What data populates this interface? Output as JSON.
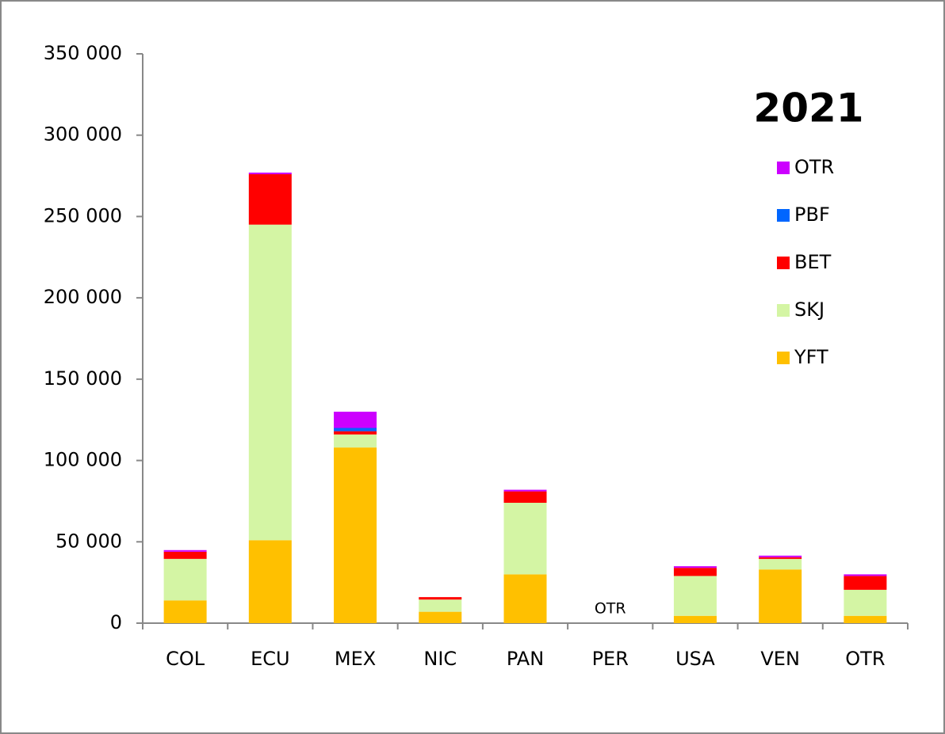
{
  "chart_data": {
    "type": "stacked_bar",
    "legend_title": "2021",
    "categories": [
      "COL",
      "ECU",
      "MEX",
      "NIC",
      "PAN",
      "PER",
      "USA",
      "VEN",
      "OTR"
    ],
    "series": [
      {
        "name": "YFT",
        "color": "#ffc000",
        "values": [
          14000,
          51000,
          108000,
          7000,
          30000,
          0,
          4500,
          33000,
          4500
        ]
      },
      {
        "name": "SKJ",
        "color": "#d4f5a4",
        "values": [
          25500,
          194000,
          8000,
          7500,
          44000,
          0,
          24500,
          6500,
          16000
        ]
      },
      {
        "name": "BET",
        "color": "#ff0000",
        "values": [
          4400,
          31000,
          2000,
          1500,
          7000,
          0,
          5000,
          1000,
          8500
        ]
      },
      {
        "name": "PBF",
        "color": "#0066ff",
        "values": [
          0,
          0,
          2000,
          0,
          0,
          0,
          0,
          0,
          0
        ]
      },
      {
        "name": "OTR",
        "color": "#cc00ff",
        "values": [
          1000,
          1000,
          10000,
          0,
          1000,
          0,
          1000,
          1000,
          1000
        ]
      }
    ],
    "annotations": [
      {
        "text": "OTR",
        "category": "PER"
      }
    ],
    "ylim": [
      0,
      350000
    ],
    "yticks": [
      0,
      {
        "value": 50000,
        "label": "50 000"
      },
      {
        "value": 100000,
        "label": "100 000"
      },
      {
        "value": 150000,
        "label": "150 000"
      },
      {
        "value": 200000,
        "label": "200 000"
      },
      {
        "value": 250000,
        "label": "250 000"
      },
      {
        "value": 300000,
        "label": "300 000"
      },
      {
        "value": 350000,
        "label": "350 000"
      }
    ],
    "legend": "upper right"
  }
}
